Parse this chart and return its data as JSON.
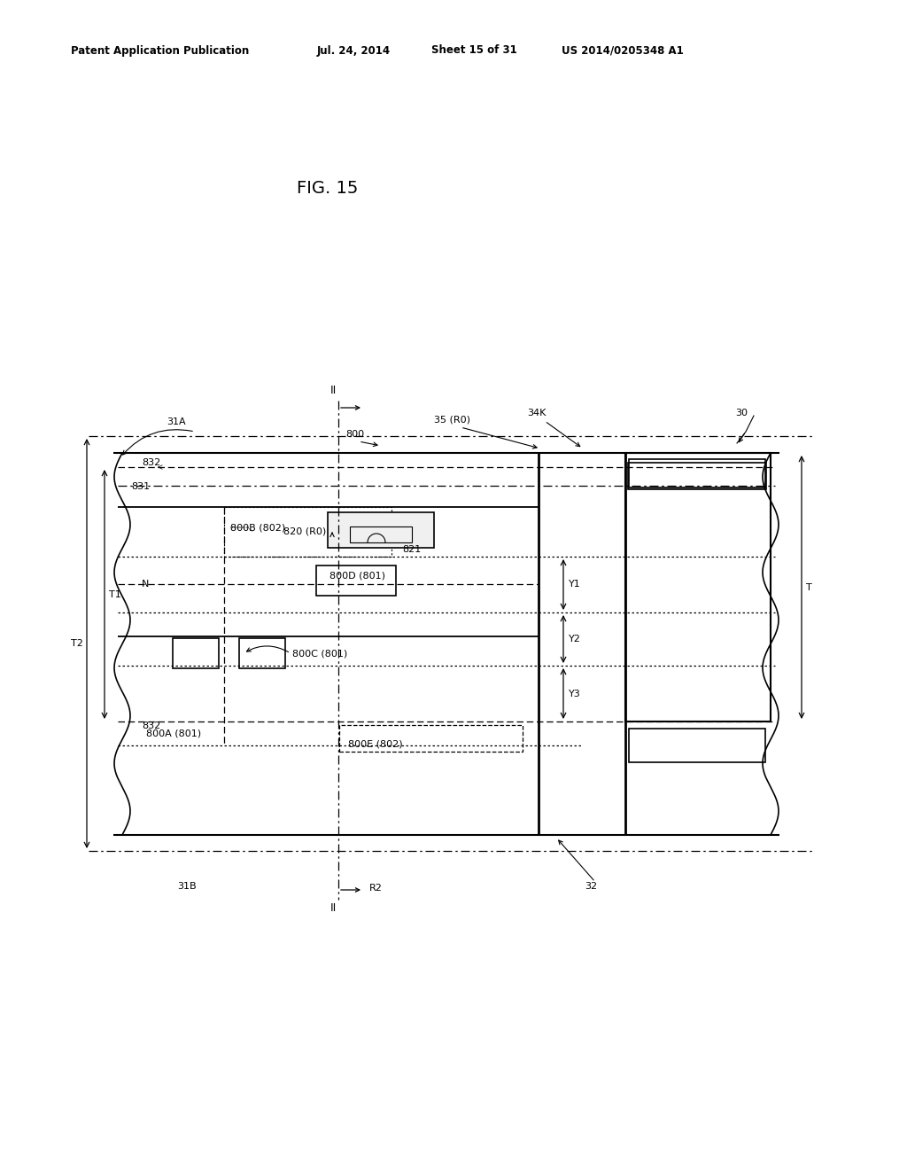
{
  "bg_color": "#ffffff",
  "header_text": "Patent Application Publication",
  "header_date": "Jul. 24, 2014",
  "header_sheet": "Sheet 15 of 31",
  "header_patent": "US 2014/0205348 A1",
  "fig_title": "FIG. 15",
  "line_color": "#000000"
}
